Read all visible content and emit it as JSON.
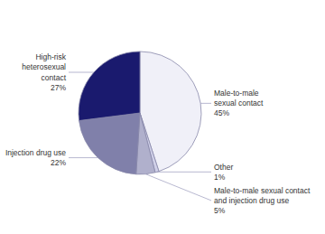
{
  "chart_data": {
    "type": "pie",
    "categories": [
      "Male-to-male\nsexual contact\n45%",
      "Other\n1%",
      "Male-to-male sexual contact\nand injection drug use\n5%",
      "Injection drug use\n22%",
      "High-risk\nheterosexual\ncontact\n27%"
    ],
    "values": [
      45,
      1,
      5,
      22,
      27
    ],
    "colors": [
      "#f0f0f8",
      "#d0d0e8",
      "#b0b0cc",
      "#8080aa",
      "#1a1a6e"
    ]
  }
}
